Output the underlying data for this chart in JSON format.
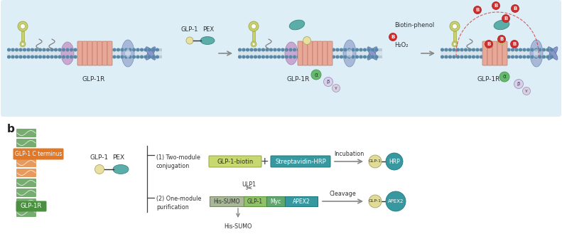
{
  "panel_a_bg": "#ddeef7",
  "membrane_color": "#b8ccd8",
  "membrane_dot_color": "#5888a8",
  "helix_color": "#e8a898",
  "helix_edge": "#c07868",
  "purple_blob_color": "#c8a8d0",
  "purple_blob_edge": "#a080b0",
  "blue_bowtie_color": "#a8b8d8",
  "blue_bowtie_edge": "#7090b8",
  "blue_x_color": "#8898c8",
  "blue_x_edge": "#6070a8",
  "wrench_color": "#c8d070",
  "wrench_edge": "#a0a840",
  "teal_oval_color": "#5aada8",
  "teal_oval_edge": "#3a8a80",
  "yellow_circle_color": "#e8e0a0",
  "yellow_circle_edge": "#b0a860",
  "red_B_color": "#cc3030",
  "red_B_edge": "#aa1818",
  "green_alpha_color": "#68b870",
  "green_alpha_edge": "#489850",
  "lavender_beta_color": "#d8d0e8",
  "lavender_beta_edge": "#a090c0",
  "small_beta_color": "#d0c8e0",
  "arrow_color": "#888888",
  "glp1biotin_color": "#c8d870",
  "glp1biotin_edge": "#90a840",
  "streptavidin_color": "#3898a0",
  "streptavidin_edge": "#207880",
  "his_sumo_color": "#a8b898",
  "his_sumo_edge": "#788868",
  "glp1seg_color": "#90c068",
  "glp1seg_edge": "#609840",
  "myc_color": "#60a870",
  "myc_edge": "#408850",
  "apex2_color": "#3898a0",
  "apex2_edge": "#207880",
  "result_glp1_color": "#e0dc98",
  "result_glp1_edge": "#a8a060",
  "result_hrp_color": "#3898a0",
  "result_hrp_edge": "#207880",
  "result_apex2_color": "#3898a0",
  "result_apex2_edge": "#207880",
  "orange_label_color": "#e07828",
  "green_struct_color": "#4a9040",
  "label_glp1r": "GLP-1R",
  "label_glp1": "GLP-1",
  "label_pex": "PEX",
  "label_biotin_phenol": "Biotin-phenol",
  "label_h2o2": "H₂O₂",
  "label_glp1c": "GLP-1 C terminus",
  "label_glp1r_green": "GLP-1R",
  "label_two_module": "(1) Two-module\nconjugation",
  "label_one_module": "(2) One-module\npurification",
  "label_glp1biotin": "GLP-1-biotin",
  "label_streptavidin": "Streptavidin-HRP",
  "label_incubation": "Incubation",
  "label_cleavage": "Cleavage",
  "label_his_sumo": "His-SUMO",
  "label_glp1_seg": "GLP-1",
  "label_myc": "Myc",
  "label_apex2": "APEX2",
  "label_ulp1": "ULP1",
  "label_his_sumo_bottom": "His-SUMO",
  "label_alpha": "α",
  "label_beta": "β",
  "label_gamma": "γ",
  "label_B": "B"
}
